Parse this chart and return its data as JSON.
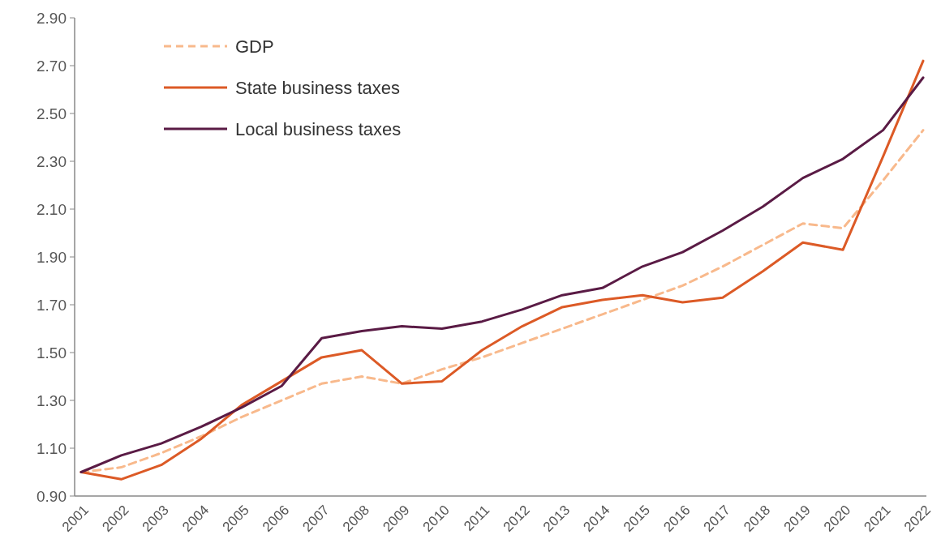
{
  "chart_data": {
    "type": "line",
    "categories": [
      "2001",
      "2002",
      "2003",
      "2004",
      "2005",
      "2006",
      "2007",
      "2008",
      "2009",
      "2010",
      "2011",
      "2012",
      "2013",
      "2014",
      "2015",
      "2016",
      "2017",
      "2018",
      "2019",
      "2020",
      "2021",
      "2022"
    ],
    "series": [
      {
        "name": "GDP",
        "color": "#f8b98c",
        "line_style": "dashed",
        "values": [
          1.0,
          1.02,
          1.08,
          1.15,
          1.23,
          1.3,
          1.37,
          1.4,
          1.37,
          1.43,
          1.48,
          1.54,
          1.6,
          1.66,
          1.72,
          1.78,
          1.86,
          1.95,
          2.04,
          2.02,
          2.22,
          2.43
        ]
      },
      {
        "name": "State business taxes",
        "color": "#dc5a26",
        "line_style": "solid",
        "values": [
          1.0,
          0.97,
          1.03,
          1.14,
          1.28,
          1.38,
          1.48,
          1.51,
          1.37,
          1.38,
          1.51,
          1.61,
          1.69,
          1.72,
          1.74,
          1.71,
          1.73,
          1.84,
          1.96,
          1.93,
          2.32,
          2.72
        ]
      },
      {
        "name": "Local business taxes",
        "color": "#5a1b45",
        "line_style": "solid",
        "values": [
          1.0,
          1.07,
          1.12,
          1.19,
          1.27,
          1.36,
          1.56,
          1.59,
          1.61,
          1.6,
          1.63,
          1.68,
          1.74,
          1.77,
          1.86,
          1.92,
          2.01,
          2.11,
          2.23,
          2.31,
          2.43,
          2.65
        ]
      }
    ],
    "ylim": [
      0.9,
      2.9
    ],
    "yticks": [
      {
        "value": 0.9,
        "label": "0.90"
      },
      {
        "value": 1.1,
        "label": "1.10"
      },
      {
        "value": 1.3,
        "label": "1.30"
      },
      {
        "value": 1.5,
        "label": "1.50"
      },
      {
        "value": 1.7,
        "label": "1.70"
      },
      {
        "value": 1.9,
        "label": "1.90"
      },
      {
        "value": 2.1,
        "label": "2.10"
      },
      {
        "value": 2.3,
        "label": "2.30"
      },
      {
        "value": 2.5,
        "label": "2.50"
      },
      {
        "value": 2.7,
        "label": "2.70"
      },
      {
        "value": 2.9,
        "label": "2.90"
      }
    ],
    "legend": "top left",
    "grid": false,
    "marker": "none"
  }
}
